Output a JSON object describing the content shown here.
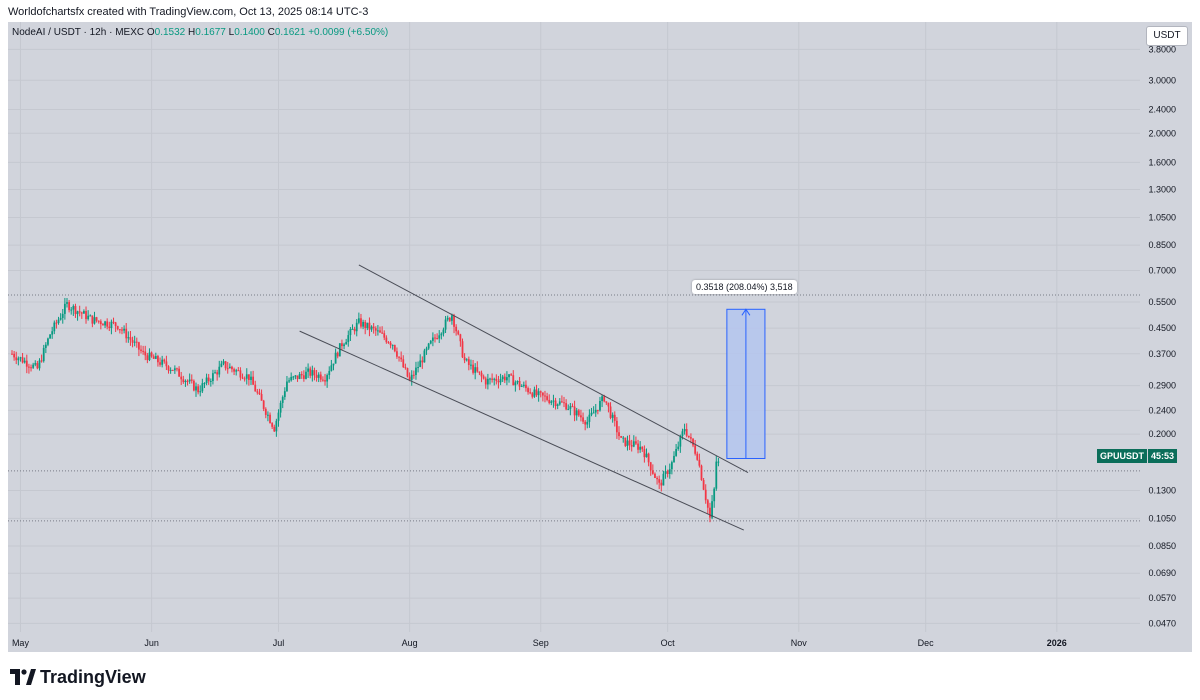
{
  "header": {
    "attribution": "Worldofchartsfx created with TradingView.com, Oct 13, 2025 08:14 UTC-3"
  },
  "legend": {
    "symbol": "NodeAI / USDT · 12h · MEXC",
    "open_label": "O",
    "open": "0.1532",
    "high_label": "H",
    "high": "0.1677",
    "low_label": "L",
    "low": "0.1400",
    "close_label": "C",
    "close": "0.1621",
    "change": "+0.0099 (+6.50%)"
  },
  "currency_button": {
    "label": "USDT"
  },
  "price_tag": {
    "symbol": "GPUUSDT",
    "countdown": "45:53"
  },
  "measure_label": "0.3518 (208.04%) 3,518",
  "brand": {
    "name": "TradingView"
  },
  "colors": {
    "up": "#089981",
    "down": "#f23645",
    "background": "#d1d4dc",
    "measure_fill": "#b4c6ef",
    "measure_line": "#2962ff",
    "tag_bg": "#0b6e5a"
  },
  "chart_data": {
    "type": "candlestick",
    "title": "NodeAI / USDT · 12h · MEXC",
    "scale": "log",
    "ylim": [
      0.044,
      3.9
    ],
    "x_tick_labels": [
      "May",
      "Jun",
      "Jul",
      "Aug",
      "Sep",
      "Oct",
      "Nov",
      "Dec",
      "2026"
    ],
    "y_tick_labels": [
      "3.8000",
      "3.0000",
      "2.4000",
      "2.0000",
      "1.6000",
      "1.3000",
      "1.0500",
      "0.8500",
      "0.7000",
      "0.5500",
      "0.4500",
      "0.3700",
      "0.2900",
      "0.2400",
      "0.2000",
      "0.1300",
      "0.1050",
      "0.0850",
      "0.0690",
      "0.0570",
      "0.0470"
    ],
    "price_keypoints": [
      {
        "date": "2025-04-29",
        "price": 0.37
      },
      {
        "date": "2025-05-05",
        "price": 0.33
      },
      {
        "date": "2025-05-08",
        "price": 0.43
      },
      {
        "date": "2025-05-12",
        "price": 0.54
      },
      {
        "date": "2025-05-18",
        "price": 0.48
      },
      {
        "date": "2025-05-24",
        "price": 0.46
      },
      {
        "date": "2025-05-30",
        "price": 0.37
      },
      {
        "date": "2025-06-06",
        "price": 0.33
      },
      {
        "date": "2025-06-12",
        "price": 0.28
      },
      {
        "date": "2025-06-18",
        "price": 0.34
      },
      {
        "date": "2025-06-24",
        "price": 0.31
      },
      {
        "date": "2025-06-30",
        "price": 0.21
      },
      {
        "date": "2025-07-03",
        "price": 0.3
      },
      {
        "date": "2025-07-08",
        "price": 0.32
      },
      {
        "date": "2025-07-12",
        "price": 0.31
      },
      {
        "date": "2025-07-16",
        "price": 0.4
      },
      {
        "date": "2025-07-20",
        "price": 0.47
      },
      {
        "date": "2025-07-24",
        "price": 0.44
      },
      {
        "date": "2025-07-28",
        "price": 0.4
      },
      {
        "date": "2025-08-01",
        "price": 0.3
      },
      {
        "date": "2025-08-06",
        "price": 0.4
      },
      {
        "date": "2025-08-11",
        "price": 0.5
      },
      {
        "date": "2025-08-14",
        "price": 0.35
      },
      {
        "date": "2025-08-19",
        "price": 0.3
      },
      {
        "date": "2025-08-24",
        "price": 0.31
      },
      {
        "date": "2025-08-31",
        "price": 0.27
      },
      {
        "date": "2025-09-07",
        "price": 0.25
      },
      {
        "date": "2025-09-12",
        "price": 0.22
      },
      {
        "date": "2025-09-16",
        "price": 0.265
      },
      {
        "date": "2025-09-20",
        "price": 0.19
      },
      {
        "date": "2025-09-25",
        "price": 0.18
      },
      {
        "date": "2025-09-29",
        "price": 0.135
      },
      {
        "date": "2025-10-02",
        "price": 0.16
      },
      {
        "date": "2025-10-05",
        "price": 0.21
      },
      {
        "date": "2025-10-08",
        "price": 0.17
      },
      {
        "date": "2025-10-11",
        "price": 0.105
      },
      {
        "date": "2025-10-13",
        "price": 0.162
      }
    ],
    "channel": {
      "upper": [
        {
          "date": "2025-07-20",
          "price": 0.73
        },
        {
          "date": "2025-10-20",
          "price": 0.149
        }
      ],
      "lower": [
        {
          "date": "2025-07-06",
          "price": 0.44
        },
        {
          "date": "2025-10-19",
          "price": 0.096
        }
      ]
    },
    "horizontal_lines": [
      0.58,
      0.151,
      0.103
    ],
    "target_box": {
      "from_date": "2025-10-15",
      "to_date": "2025-10-24",
      "low": 0.166,
      "high": 0.52
    }
  }
}
